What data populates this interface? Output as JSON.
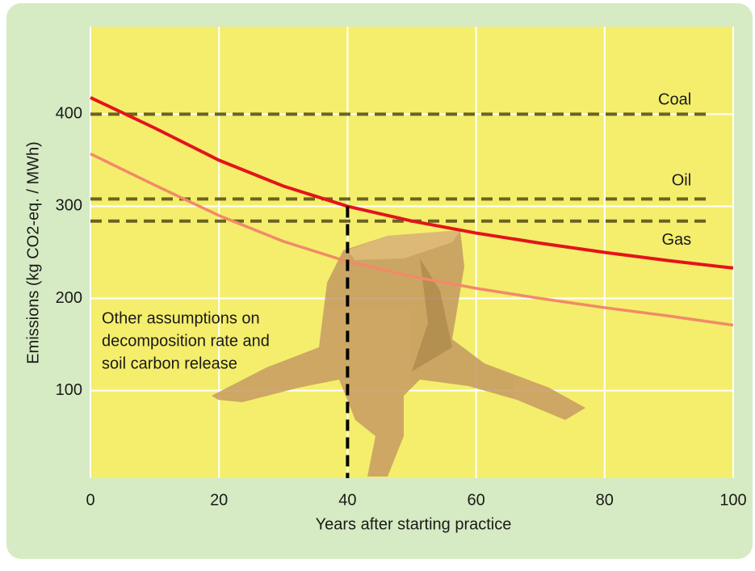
{
  "chart_data": {
    "type": "line",
    "x_label": "Years after starting practice",
    "y_label": "Emissions (kg CO2-eq. / MWh)",
    "x": [
      0,
      10,
      20,
      30,
      40,
      50,
      60,
      70,
      80,
      90,
      100
    ],
    "series": [
      {
        "color": "#e3141b",
        "values": [
          418,
          385,
          350,
          322,
          300,
          284,
          271,
          260,
          250,
          241,
          233
        ]
      },
      {
        "color": "#f28a68",
        "values": [
          357,
          323,
          290,
          262,
          240,
          224,
          211,
          200,
          190,
          181,
          171
        ]
      }
    ],
    "reference_lines": [
      {
        "label": "Coal",
        "value": 400
      },
      {
        "label": "Oil",
        "value": 308
      },
      {
        "label": "Gas",
        "value": 284
      }
    ],
    "reference_color": "#6b6320",
    "reference_end": 96,
    "marker": {
      "x": 40,
      "y": 300
    },
    "annotation": [
      "Other assumptions on",
      "decomposition rate and",
      "soil carbon release"
    ],
    "xlim": [
      0,
      100
    ],
    "xticks": [
      0,
      20,
      40,
      60,
      80,
      100
    ],
    "ylim": [
      5,
      495
    ],
    "yticks": [
      100,
      200,
      300,
      400
    ],
    "grid": true
  }
}
